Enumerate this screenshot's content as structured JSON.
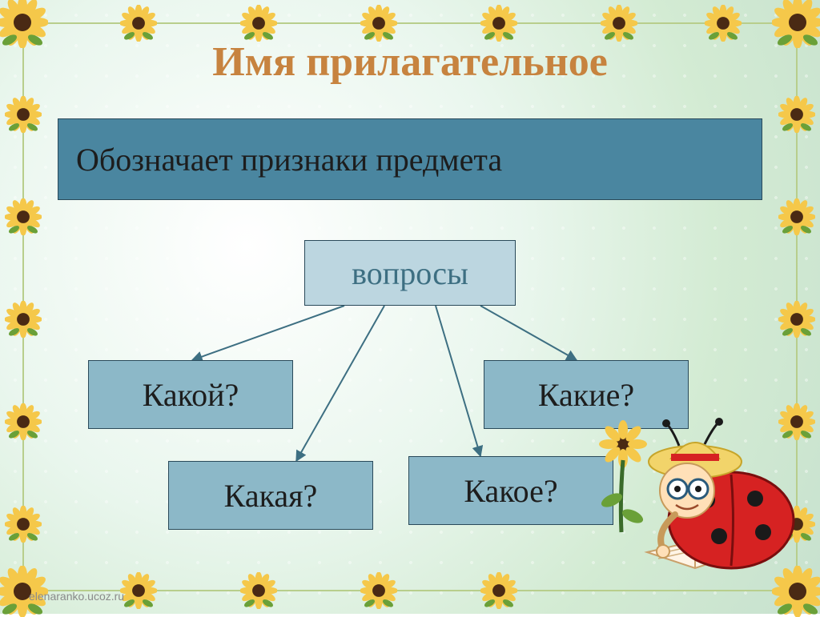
{
  "title": {
    "text": "Имя прилагательное",
    "color": "#c7833f",
    "fontsize": 52
  },
  "main_box": {
    "text": "Обозначает признаки предмета",
    "bg": "#4a86a0",
    "text_color": "#1d1d1d",
    "fontsize": 40
  },
  "questions_label": {
    "text": "вопросы",
    "bg": "#bcd6e0",
    "text_color": "#3d6f82",
    "fontsize": 40
  },
  "question_boxes": {
    "bg": "#8cb8c8",
    "text_color": "#1d1d1d",
    "fontsize": 40,
    "items": [
      {
        "text": "Какой?"
      },
      {
        "text": "Какие?"
      },
      {
        "text": "Какая?"
      },
      {
        "text": "Какое?"
      }
    ]
  },
  "arrows": {
    "color": "#3d6f82",
    "width": 2
  },
  "sunflower": {
    "petal_color": "#f5c84a",
    "center_color": "#4a2a14",
    "leaf_color": "#6aa038"
  },
  "border_color": "#b8ce8c",
  "watermark": "elenaranko.ucoz.ru"
}
